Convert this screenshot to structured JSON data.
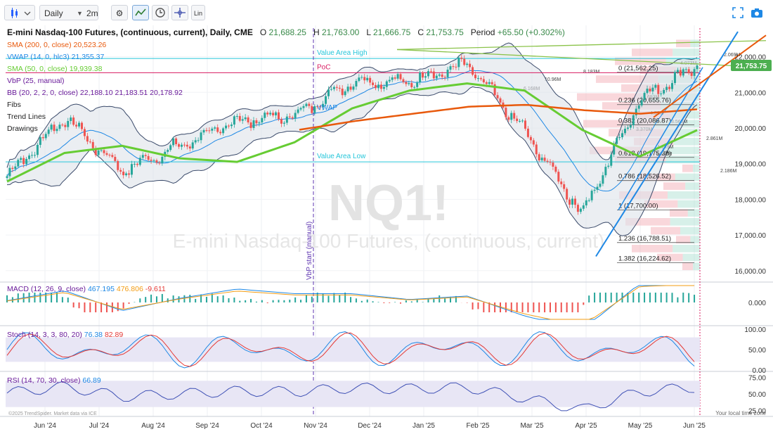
{
  "toolbar": {
    "interval": "Daily",
    "range": "2m",
    "scale_label": "Lin",
    "icons": [
      "chart-type-icon",
      "settings-icon",
      "indicator-icon",
      "clock-icon",
      "crosshair-icon",
      "fullscreen-icon",
      "camera-icon"
    ]
  },
  "header": {
    "title": "E-mini Nasdaq-100 Futures, (continuous, current), Daily, CME",
    "open_label": "O",
    "open": "21,688.25",
    "high_label": "H",
    "high": "21,763.00",
    "low_label": "L",
    "low": "21,666.75",
    "close_label": "C",
    "close": "21,753.75",
    "period_label": "Period",
    "period": "+65.50 (+0.302%)"
  },
  "legend": [
    {
      "label": "SMA (200, 0, close)",
      "value": "20,523.26",
      "color": "#e8590c"
    },
    {
      "label": "VWAP (14, 0, hlc3)",
      "value": "21,355.37",
      "color": "#1e88e5"
    },
    {
      "label": "SMA (50, 0, close)",
      "value": "19,939.38",
      "color": "#66cc33"
    },
    {
      "label": "VbP (25, manual)",
      "value": "",
      "color": "#6a1b9a"
    },
    {
      "label": "BB (20, 2, 2, 0, close)",
      "value": "22,188.10 21,183.51 20,178.92",
      "color": "#6a1b9a"
    },
    {
      "label": "Fibs",
      "value": "",
      "color": "#222"
    },
    {
      "label": "Trend Lines",
      "value": "",
      "color": "#222"
    },
    {
      "label": "Drawings",
      "value": "",
      "color": "#222"
    }
  ],
  "annotations": {
    "value_area_high": "Value Area High",
    "value_area_low": "Value Area Low",
    "poc": "PoC",
    "vwap": "VWAP",
    "vbp_start": "VbP start (manual)",
    "watermark_symbol": "NQ1!",
    "watermark_name": "E-mini Nasdaq-100 Futures, (continuous, current)",
    "copyright": "©2025 TrendSpider. Market data via ICE",
    "local_time": "Your local time zone",
    "last_price": "21,753.75"
  },
  "fibs": [
    {
      "label": "0 (21,562.25)",
      "price": 21562.25
    },
    {
      "label": "0.236 (20,655.76)",
      "price": 20655.76
    },
    {
      "label": "0.382 (20,086.87)",
      "price": 20086.87
    },
    {
      "label": "0.618 (19,175.38)",
      "price": 19175.38
    },
    {
      "label": "0.786 (18,526.52)",
      "price": 18526.52
    },
    {
      "label": "1 (17,700.00)",
      "price": 17700.0
    },
    {
      "label": "1.236 (16,788.51)",
      "price": 16788.51
    },
    {
      "label": "1.382 (16,224.62)",
      "price": 16224.62
    }
  ],
  "volume_profile_labels": [
    "8.183M",
    "10.96M",
    "6.168M",
    "5.693M",
    "4.52M",
    "3.565M",
    "3.370M",
    "2.861M",
    "4.149M",
    "4.247M",
    "4.073M",
    "2.069M",
    "2.186M"
  ],
  "chart_data": [
    {
      "type": "line",
      "name": "price",
      "x_tick_labels": [
        "Jun '24",
        "Jul '24",
        "Aug '24",
        "Sep '24",
        "Oct '24",
        "Nov '24",
        "Dec '24",
        "Jan '25",
        "Feb '25",
        "Mar '25",
        "Apr '25",
        "May '25",
        "Jun '25"
      ],
      "y_tick_labels": [
        "22,000.00",
        "21,000.00",
        "20,000.00",
        "19,000.00",
        "18,000.00",
        "17,000.00",
        "16,000.00"
      ],
      "y_ticks": [
        22000,
        21000,
        20000,
        19000,
        18000,
        17000,
        16000
      ],
      "ylim": [
        15700,
        22800
      ],
      "x": [
        "Jun '24",
        "Jul '24",
        "Aug '24",
        "Sep '24",
        "Oct '24",
        "Nov '24",
        "Dec '24",
        "Jan '25",
        "Feb '25",
        "Mar '25",
        "Apr '25",
        "May '25",
        "Jun '25"
      ],
      "close": [
        18650,
        20300,
        18800,
        19500,
        20200,
        20350,
        21300,
        21300,
        21800,
        19900,
        17600,
        20800,
        21753.75
      ],
      "sma200": [
        18500,
        18950,
        19300,
        19500,
        19700,
        19950,
        20200,
        20400,
        20600,
        20650,
        20500,
        20400,
        20523.26
      ],
      "sma50": [
        18500,
        19300,
        19500,
        19150,
        19050,
        19600,
        20550,
        21050,
        21250,
        21050,
        19950,
        19200,
        19939.38
      ],
      "value_area_high": 21950,
      "poc": 21550,
      "value_area_low": 19050
    },
    {
      "type": "line",
      "name": "MACD (12, 26, 9, close)",
      "values_label": [
        "467.195",
        "476.806",
        "-9.611"
      ],
      "y_tick_labels": [
        "0.000"
      ]
    },
    {
      "type": "line",
      "name": "Stoch (14, 3, 3, 80, 20)",
      "values_label": [
        "76.38",
        "82.89"
      ],
      "y_tick_labels": [
        "100.00",
        "50.00",
        "0.00"
      ],
      "ylim": [
        0,
        100
      ]
    },
    {
      "type": "line",
      "name": "RSI (14, 70, 30, close)",
      "values_label": [
        "66.89"
      ],
      "y_tick_labels": [
        "75.00",
        "50.00",
        "25.00"
      ],
      "ylim": [
        25,
        75
      ]
    }
  ],
  "colors": {
    "candle_up": "#26a69a",
    "candle_down": "#ef5350",
    "sma200": "#e8590c",
    "sma50": "#66cc33",
    "vwap": "#1e88e5",
    "bb": "#3a4a6a",
    "value_area": "#26c6da",
    "poc": "#d81b60",
    "trend_green": "#8bc34a",
    "trend_blue": "#1e88e5",
    "trend_orange": "#e8590c",
    "last_price_bg": "#4caf50"
  }
}
